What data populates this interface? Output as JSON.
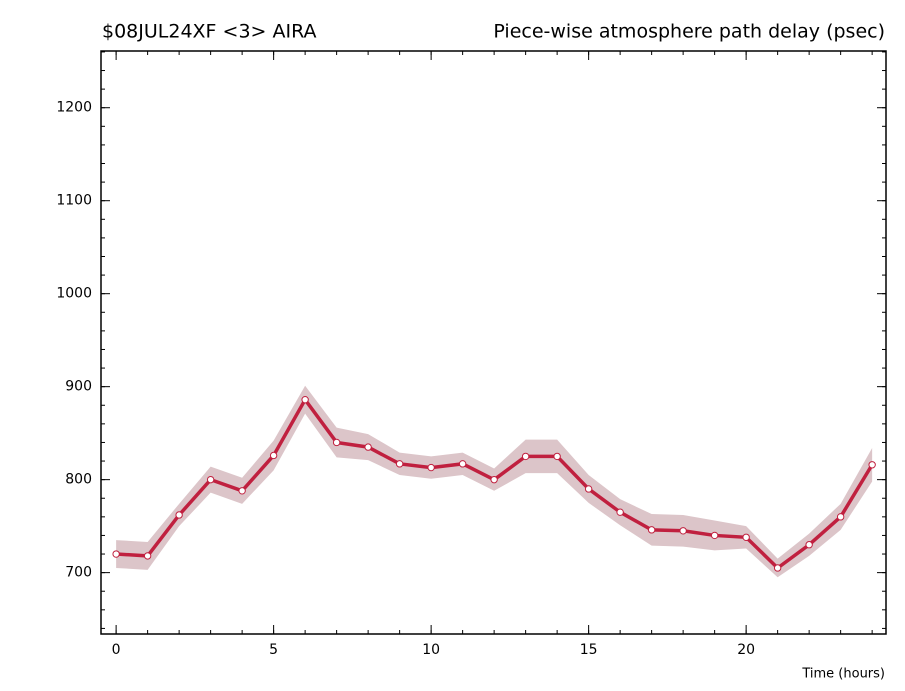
{
  "chart_data": {
    "type": "line",
    "title": "$08JUL24XF <3>  AIRA",
    "subtitle": "Piece-wise atmosphere path delay (psec)",
    "x_label": "Time (hours)",
    "x": [
      0,
      1,
      2,
      3,
      4,
      5,
      6,
      7,
      8,
      9,
      10,
      11,
      12,
      13,
      14,
      15,
      16,
      17,
      18,
      19,
      20,
      21,
      22,
      23,
      24
    ],
    "values": [
      720,
      718,
      762,
      800,
      788,
      826,
      886,
      840,
      835,
      817,
      813,
      817,
      800,
      825,
      825,
      790,
      765,
      746,
      745,
      740,
      738,
      705,
      730,
      760,
      816
    ],
    "errors": [
      15,
      15,
      12,
      14,
      14,
      16,
      15,
      16,
      14,
      12,
      12,
      12,
      12,
      18,
      18,
      15,
      14,
      17,
      17,
      16,
      12,
      10,
      12,
      14,
      18
    ],
    "color": "#c0203f",
    "band_color": "#dcc5c9",
    "xlim": [
      -0.48,
      24.44
    ],
    "xticks": [
      0,
      5,
      10,
      15,
      20
    ],
    "ylim": [
      634,
      1261
    ],
    "yticks": [
      700,
      800,
      900,
      1000,
      1100,
      1200
    ]
  }
}
